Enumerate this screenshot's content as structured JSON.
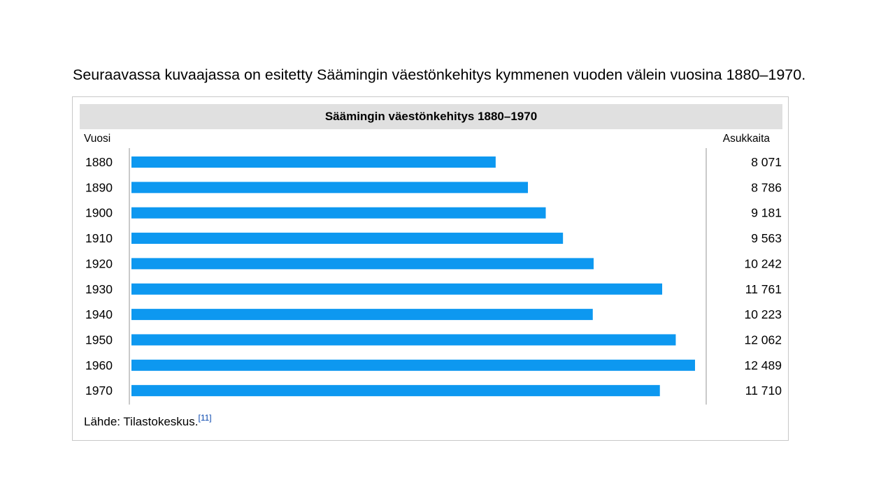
{
  "intro_text": "Seuraavassa kuvaajassa on esitetty Säämingin väestönkehitys kymmenen vuoden välein vuosina 1880–1970.",
  "chart_data": {
    "type": "bar",
    "orientation": "horizontal",
    "title": "Säämingin väestönkehitys 1880–1970",
    "left_header": "Vuosi",
    "right_header": "Asukkaita",
    "categories": [
      "1880",
      "1890",
      "1900",
      "1910",
      "1920",
      "1930",
      "1940",
      "1950",
      "1960",
      "1970"
    ],
    "values": [
      8071,
      8786,
      9181,
      9563,
      10242,
      11761,
      10223,
      12062,
      12489,
      11710
    ],
    "value_labels": [
      "8 071",
      "8 786",
      "9 181",
      "9 563",
      "10 242",
      "11 761",
      "10 223",
      "12 062",
      "12 489",
      "11 710"
    ],
    "bar_color": "#0d98f0",
    "grid": false
  },
  "source": {
    "text": "Lähde: Tilastokeskus.",
    "ref": "[11]"
  }
}
